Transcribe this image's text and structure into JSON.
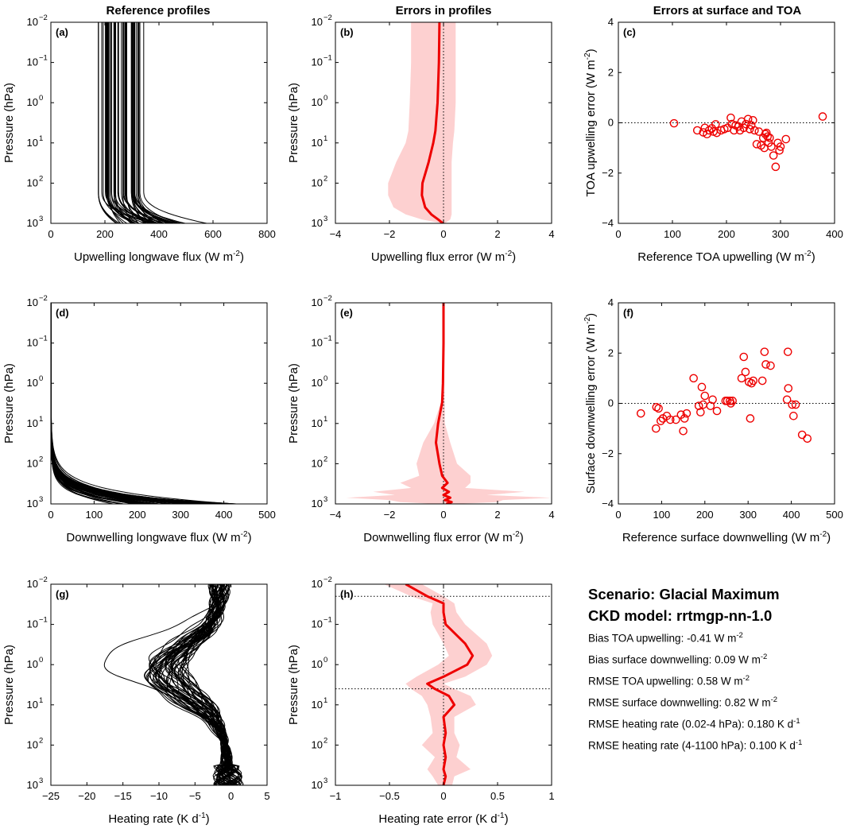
{
  "column_titles": [
    "Reference profiles",
    "Errors in profiles",
    "Errors at surface and TOA"
  ],
  "summary": {
    "scenario": "Scenario: Glacial Maximum",
    "ckd_model": "CKD model: rrtmgp-nn-1.0",
    "stats": [
      {
        "label": "Bias TOA upwelling: -0.41 W m",
        "sup": "-2"
      },
      {
        "label": "Bias surface downwelling: 0.09 W m",
        "sup": "-2"
      },
      {
        "label": "RMSE TOA upwelling: 0.58 W m",
        "sup": "-2"
      },
      {
        "label": "RMSE surface downwelling: 0.82 W m",
        "sup": "-2"
      },
      {
        "label": "RMSE heating rate (0.02-4 hPa):  0.180 K d",
        "sup": "-1"
      },
      {
        "label": "RMSE heating rate (4-1100 hPa):  0.100 K d",
        "sup": "-1"
      }
    ]
  },
  "chart_data": [
    {
      "id": "a",
      "type": "line",
      "panel_label": "(a)",
      "xlabel": "Upwelling longwave flux (W m",
      "xlabel_sup": "-2",
      "ylabel": "Pressure (hPa)",
      "ylog": true,
      "yreverse": true,
      "xlim": [
        0,
        800
      ],
      "ylim": [
        0.01,
        1000
      ],
      "xticks": [
        0,
        200,
        400,
        600,
        800
      ],
      "series_kind": "many_profiles",
      "color": "#000000",
      "summary": "about 50 near-vertical profiles, upper-level flux 100-390 W m-2, surface flux 160-630 W m-2"
    },
    {
      "id": "b",
      "type": "area",
      "panel_label": "(b)",
      "xlabel": "Upwelling flux error (W m",
      "xlabel_sup": "-2",
      "ylabel": "Pressure (hPa)",
      "ylog": true,
      "yreverse": true,
      "xlim": [
        -4,
        4
      ],
      "ylim": [
        0.01,
        1000
      ],
      "xticks": [
        -4,
        -2,
        0,
        2,
        4
      ],
      "mean_color": "#ee0000",
      "band_color": "#fdd0d0",
      "pressure": [
        0.01,
        0.1,
        1,
        5,
        10,
        30,
        100,
        200,
        400,
        600,
        800,
        1000
      ],
      "mean": [
        -0.15,
        -0.17,
        -0.22,
        -0.3,
        -0.38,
        -0.55,
        -0.78,
        -0.8,
        -0.68,
        -0.45,
        -0.2,
        -0.02
      ],
      "band_low": [
        -1.2,
        -1.2,
        -1.25,
        -1.3,
        -1.4,
        -1.75,
        -2.05,
        -2.05,
        -1.85,
        -1.4,
        -0.8,
        -0.05
      ],
      "band_high": [
        0.45,
        0.45,
        0.45,
        0.4,
        0.35,
        0.3,
        0.3,
        0.3,
        0.3,
        0.3,
        0.25,
        0.05
      ]
    },
    {
      "id": "c",
      "type": "scatter",
      "panel_label": "(c)",
      "xlabel": "Reference TOA upwelling (W m",
      "xlabel_sup": "-2",
      "ylabel": "TOA upwelling error (W m",
      "ylabel_sup": "-2",
      "xlim": [
        0,
        400
      ],
      "ylim": [
        -4,
        4
      ],
      "xticks": [
        0,
        100,
        200,
        300,
        400
      ],
      "yticks": [
        -4,
        -2,
        0,
        2,
        4
      ],
      "zero_line": true,
      "marker_color": "#ee0000",
      "points": [
        [
          103,
          -0.02
        ],
        [
          146,
          -0.3
        ],
        [
          157,
          -0.38
        ],
        [
          160,
          -0.2
        ],
        [
          164,
          -0.45
        ],
        [
          168,
          -0.3
        ],
        [
          173,
          -0.22
        ],
        [
          176,
          -0.35
        ],
        [
          180,
          -0.06
        ],
        [
          182,
          -0.4
        ],
        [
          190,
          -0.3
        ],
        [
          196,
          -0.25
        ],
        [
          202,
          -0.2
        ],
        [
          208,
          0.2
        ],
        [
          210,
          -0.05
        ],
        [
          214,
          -0.3
        ],
        [
          217,
          -0.1
        ],
        [
          222,
          -0.15
        ],
        [
          225,
          -0.3
        ],
        [
          228,
          0.05
        ],
        [
          232,
          -0.2
        ],
        [
          236,
          -0.05
        ],
        [
          240,
          0.15
        ],
        [
          243,
          -0.25
        ],
        [
          246,
          -0.1
        ],
        [
          249,
          0.1
        ],
        [
          252,
          -0.3
        ],
        [
          256,
          -0.85
        ],
        [
          260,
          -0.35
        ],
        [
          264,
          -0.9
        ],
        [
          268,
          -0.6
        ],
        [
          270,
          -1.0
        ],
        [
          272,
          -0.45
        ],
        [
          274,
          -0.4
        ],
        [
          276,
          -0.55
        ],
        [
          278,
          -0.8
        ],
        [
          280,
          -0.6
        ],
        [
          283,
          -0.95
        ],
        [
          287,
          -1.3
        ],
        [
          291,
          -1.75
        ],
        [
          295,
          -0.8
        ],
        [
          298,
          -1.1
        ],
        [
          300,
          -0.95
        ],
        [
          310,
          -0.65
        ],
        [
          378,
          0.25
        ]
      ]
    },
    {
      "id": "d",
      "type": "line",
      "panel_label": "(d)",
      "xlabel": "Downwelling longwave flux (W m",
      "xlabel_sup": "-2",
      "ylabel": "Pressure (hPa)",
      "ylog": true,
      "yreverse": true,
      "xlim": [
        0,
        500
      ],
      "ylim": [
        0.01,
        1000
      ],
      "xticks": [
        0,
        100,
        200,
        300,
        400,
        500
      ],
      "series_kind": "many_profiles",
      "color": "#000000",
      "summary": "about 50 profiles, near zero aloft, rising to 120-440 W m-2 at the surface"
    },
    {
      "id": "e",
      "type": "area",
      "panel_label": "(e)",
      "xlabel": "Downwelling flux error (W m",
      "xlabel_sup": "-2",
      "ylabel": "Pressure (hPa)",
      "ylog": true,
      "yreverse": true,
      "xlim": [
        -4,
        4
      ],
      "ylim": [
        0.01,
        1000
      ],
      "xticks": [
        -4,
        -2,
        0,
        2,
        4
      ],
      "mean_color": "#ee0000",
      "band_color": "#fdd0d0",
      "pressure": [
        0.01,
        0.1,
        1,
        3,
        10,
        30,
        100,
        200,
        300,
        400,
        500,
        600,
        700,
        800,
        900,
        1000
      ],
      "mean": [
        0.0,
        0.0,
        -0.02,
        -0.05,
        -0.2,
        -0.28,
        -0.15,
        -0.05,
        0.15,
        -0.05,
        0.2,
        0.0,
        0.25,
        0.05,
        0.3,
        0.1
      ],
      "band_low": [
        -0.03,
        -0.03,
        -0.05,
        -0.1,
        -0.35,
        -0.75,
        -1.0,
        -0.9,
        -1.6,
        -1.2,
        -2.6,
        -1.8,
        -3.6,
        -2.0,
        -1.6,
        -0.3
      ],
      "band_high": [
        0.03,
        0.03,
        0.03,
        0.05,
        0.05,
        0.25,
        0.5,
        1.0,
        1.0,
        0.8,
        3.0,
        1.6,
        4.0,
        2.2,
        2.0,
        0.4
      ]
    },
    {
      "id": "f",
      "type": "scatter",
      "panel_label": "(f)",
      "xlabel": "Reference surface downwelling (W m",
      "xlabel_sup": "-2",
      "ylabel": "Surface downwelling error (W m",
      "ylabel_sup": "-2",
      "xlim": [
        0,
        500
      ],
      "ylim": [
        -4,
        4
      ],
      "xticks": [
        0,
        100,
        200,
        300,
        400,
        500
      ],
      "yticks": [
        -4,
        -2,
        0,
        2,
        4
      ],
      "zero_line": true,
      "marker_color": "#ee0000",
      "points": [
        [
          52,
          -0.4
        ],
        [
          87,
          -1.0
        ],
        [
          88,
          -0.15
        ],
        [
          93,
          -0.2
        ],
        [
          98,
          -0.7
        ],
        [
          103,
          -0.6
        ],
        [
          112,
          -0.5
        ],
        [
          120,
          -0.65
        ],
        [
          133,
          -0.65
        ],
        [
          145,
          -0.45
        ],
        [
          150,
          -1.1
        ],
        [
          153,
          -0.6
        ],
        [
          158,
          -0.4
        ],
        [
          174,
          1.0
        ],
        [
          186,
          -0.1
        ],
        [
          190,
          -0.35
        ],
        [
          193,
          0.65
        ],
        [
          196,
          -0.05
        ],
        [
          200,
          0.3
        ],
        [
          213,
          -0.1
        ],
        [
          218,
          0.15
        ],
        [
          228,
          -0.3
        ],
        [
          248,
          0.1
        ],
        [
          252,
          0.1
        ],
        [
          258,
          0.1
        ],
        [
          260,
          0.0
        ],
        [
          264,
          0.1
        ],
        [
          285,
          1.0
        ],
        [
          290,
          1.85
        ],
        [
          294,
          1.25
        ],
        [
          302,
          0.85
        ],
        [
          305,
          -0.6
        ],
        [
          308,
          0.8
        ],
        [
          312,
          0.9
        ],
        [
          333,
          0.9
        ],
        [
          338,
          2.05
        ],
        [
          341,
          1.55
        ],
        [
          352,
          1.5
        ],
        [
          390,
          0.15
        ],
        [
          392,
          2.05
        ],
        [
          393,
          0.6
        ],
        [
          402,
          -0.05
        ],
        [
          405,
          -0.5
        ],
        [
          410,
          -0.05
        ],
        [
          425,
          -1.25
        ],
        [
          437,
          -1.4
        ]
      ]
    },
    {
      "id": "g",
      "type": "line",
      "panel_label": "(g)",
      "xlabel": "Heating rate (K d",
      "xlabel_sup": "-1",
      "ylabel": "Pressure (hPa)",
      "ylog": true,
      "yreverse": true,
      "xlim": [
        -25,
        5
      ],
      "ylim": [
        0.01,
        1000
      ],
      "xticks": [
        -25,
        -20,
        -15,
        -10,
        -5,
        0,
        5
      ],
      "series_kind": "many_profiles",
      "color": "#000000",
      "summary": "about 50 heating-rate profiles, cooling maximum of -5 to -12 K d-1 near 1 hPa, outliers to -22 K d-1"
    },
    {
      "id": "h",
      "type": "area",
      "panel_label": "(h)",
      "xlabel": "Heating rate error (K d",
      "xlabel_sup": "-1",
      "ylabel": "Pressure (hPa)",
      "ylog": true,
      "yreverse": true,
      "xlim": [
        -1,
        1
      ],
      "ylim": [
        0.01,
        1000
      ],
      "xticks": [
        -1,
        -0.5,
        0,
        0.5,
        1
      ],
      "hlines": [
        0.02,
        4
      ],
      "mean_color": "#ee0000",
      "band_color": "#fdd0d0",
      "pressure": [
        0.01,
        0.02,
        0.03,
        0.05,
        0.1,
        0.3,
        0.6,
        1,
        2,
        3,
        4,
        6,
        10,
        20,
        50,
        100,
        200,
        400,
        600,
        1000
      ],
      "mean": [
        -0.35,
        -0.15,
        0.0,
        0.0,
        0.02,
        0.2,
        0.27,
        0.22,
        0.0,
        -0.15,
        -0.08,
        0.05,
        0.1,
        0.0,
        0.02,
        0.0,
        0.02,
        0.0,
        0.02,
        0.0
      ],
      "band_low": [
        -0.55,
        -0.3,
        -0.1,
        -0.12,
        -0.1,
        0.0,
        0.05,
        -0.05,
        -0.25,
        -0.35,
        -0.3,
        -0.2,
        -0.15,
        -0.12,
        -0.1,
        -0.2,
        -0.08,
        -0.15,
        -0.1,
        -0.05
      ],
      "band_high": [
        -0.2,
        0.0,
        0.1,
        0.12,
        0.2,
        0.4,
        0.45,
        0.4,
        0.2,
        0.0,
        0.1,
        0.25,
        0.3,
        0.1,
        0.1,
        0.15,
        0.12,
        0.25,
        0.1,
        0.08
      ]
    }
  ]
}
